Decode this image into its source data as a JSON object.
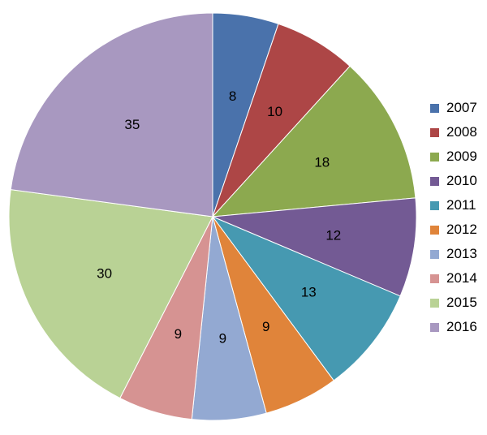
{
  "chart_data": {
    "type": "pie",
    "title": "",
    "categories": [
      "2007",
      "2008",
      "2009",
      "2010",
      "2011",
      "2012",
      "2013",
      "2014",
      "2015",
      "2016"
    ],
    "values": [
      8,
      10,
      18,
      12,
      13,
      9,
      9,
      9,
      30,
      35
    ],
    "colors": [
      "#4a72ab",
      "#ad4646",
      "#8ca94f",
      "#735a94",
      "#4699b1",
      "#e0843a",
      "#93a9d2",
      "#d69392",
      "#b9d295",
      "#a898c0"
    ],
    "start_angle_deg": 0,
    "direction": "clockwise",
    "legend_position": "right",
    "data_labels": true
  }
}
